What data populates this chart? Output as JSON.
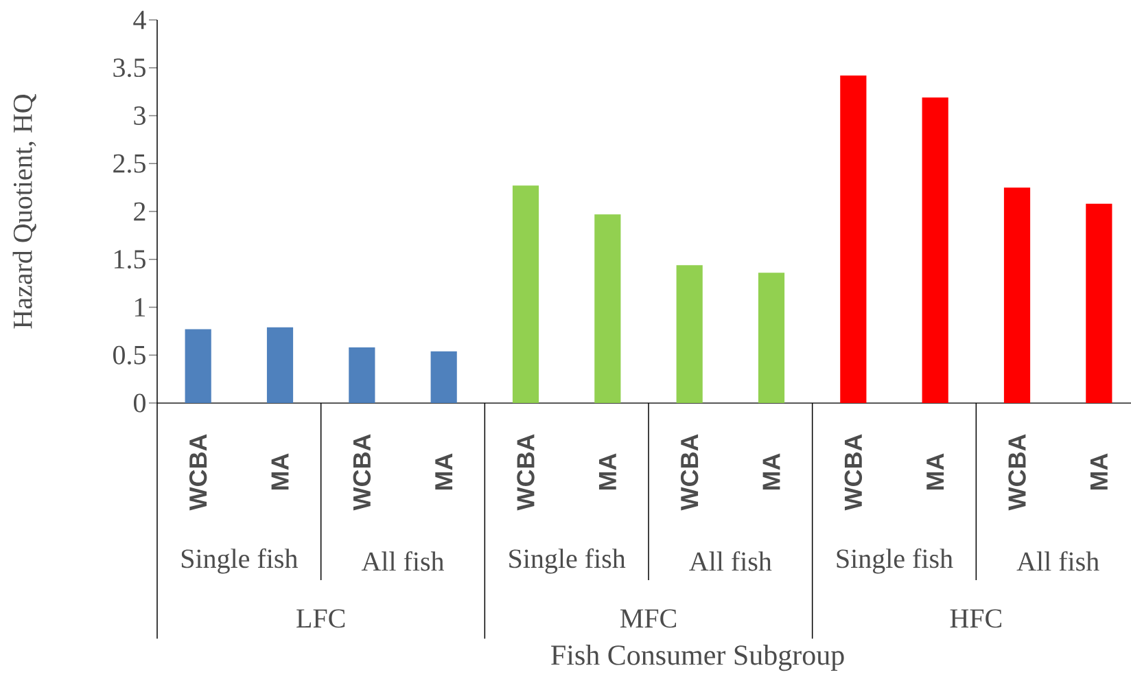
{
  "chart_data": {
    "type": "bar",
    "xlabel": "Fish Consumer Subgroup",
    "ylabel": "Hazard Quotient, HQ",
    "categories": [
      "WCBA",
      "MA",
      "WCBA",
      "MA",
      "WCBA",
      "MA",
      "WCBA",
      "MA",
      "WCBA",
      "MA",
      "WCBA",
      "MA"
    ],
    "values": [
      0.77,
      0.79,
      0.58,
      0.54,
      2.27,
      1.97,
      1.44,
      1.36,
      3.42,
      3.19,
      2.25,
      2.08
    ],
    "colors": [
      "#4f81bd",
      "#4f81bd",
      "#4f81bd",
      "#4f81bd",
      "#92d050",
      "#92d050",
      "#92d050",
      "#92d050",
      "#ff0000",
      "#ff0000",
      "#ff0000",
      "#ff0000"
    ],
    "ylim": [
      0,
      4
    ],
    "yticks": [
      0,
      0.5,
      1,
      1.5,
      2,
      2.5,
      3,
      3.5,
      4
    ],
    "annotations": [
      "Single fish",
      "All fish",
      "Single fish",
      "All fish",
      "Single fish",
      "All fish",
      "LFC",
      "MFC",
      "HFC"
    ],
    "grid": false
  }
}
